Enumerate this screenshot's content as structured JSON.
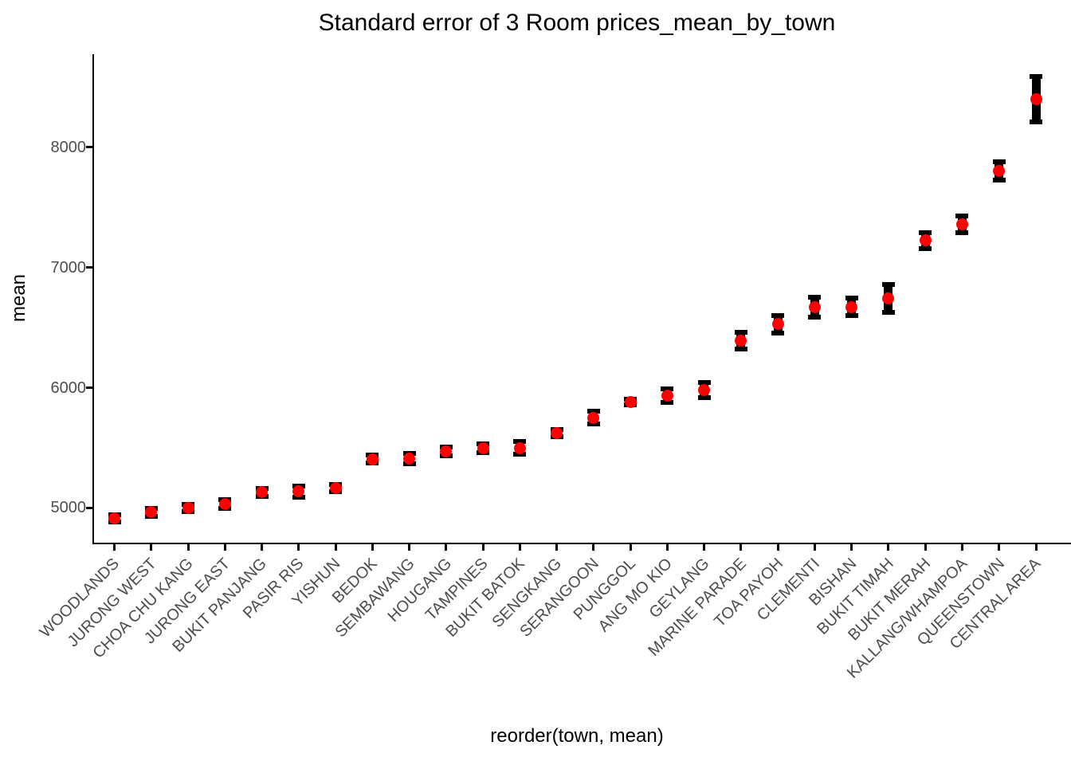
{
  "chart_data": {
    "type": "scatter",
    "subtype": "point-with-errorbar",
    "title": "Standard error of 3 Room prices_mean_by_town",
    "xlabel": "reorder(town, mean)",
    "ylabel": "mean",
    "categories": [
      "WOODLANDS",
      "JURONG WEST",
      "CHOA CHU KANG",
      "JURONG EAST",
      "BUKIT PANJANG",
      "PASIR RIS",
      "YISHUN",
      "BEDOK",
      "SEMBAWANG",
      "HOUGANG",
      "TAMPINES",
      "BUKIT BATOK",
      "SENGKANG",
      "SERANGOON",
      "PUNGGOL",
      "ANG MO KIO",
      "GEYLANG",
      "MARINE PARADE",
      "TOA PAYOH",
      "CLEMENTI",
      "BISHAN",
      "BUKIT TIMAH",
      "BUKIT MERAH",
      "KALLANG/WHAMPOA",
      "QUEENSTOWN",
      "CENTRAL AREA"
    ],
    "series": [
      {
        "name": "mean",
        "values": [
          4915,
          4963,
          4998,
          5029,
          5128,
          5136,
          5162,
          5405,
          5409,
          5468,
          5495,
          5497,
          5620,
          5751,
          5881,
          5933,
          5983,
          6390,
          6528,
          6670,
          6673,
          6745,
          7224,
          7360,
          7805,
          8400
        ]
      },
      {
        "name": "standard_error",
        "values": [
          50,
          53,
          50,
          57,
          53,
          66,
          49,
          53,
          61,
          55,
          55,
          72,
          50,
          72,
          41,
          77,
          83,
          89,
          94,
          100,
          90,
          135,
          86,
          90,
          96,
          210
        ]
      }
    ],
    "yticks": [
      5000,
      6000,
      7000,
      8000
    ],
    "ylim": [
      4710,
      8776
    ],
    "grid": "off",
    "legend": "none",
    "colors": {
      "point": "#FF0000",
      "errorbar": "#000000",
      "tick_label": "#4d4d4d",
      "axis_line": "#000000",
      "text": "#000000",
      "background": "#ffffff"
    }
  }
}
